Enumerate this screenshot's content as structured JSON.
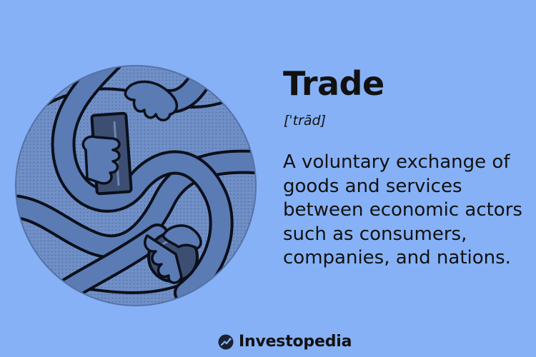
{
  "term": "Trade",
  "pronunciation": "[ˈtrād]",
  "definition": "A voluntary exchange of goods and services between economic actors such as consumers, companies, and nations.",
  "brand": {
    "name": "Investopedia",
    "icon": "investopedia-logo-icon"
  },
  "illustration": {
    "subject": "intertwined-arms-exchanging-goods",
    "colors": {
      "background": "#86b1f6",
      "disc": "#6f8fc6",
      "arm": "#5a7bb3",
      "outline": "#0b0f1a",
      "goods": "#3c4f73"
    }
  }
}
